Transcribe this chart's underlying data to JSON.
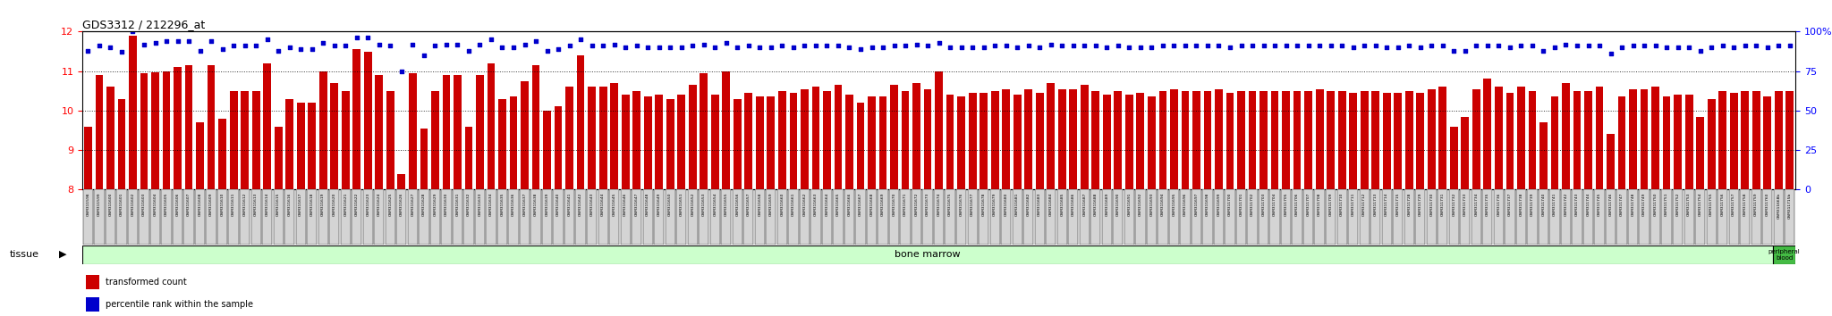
{
  "title": "GDS3312 / 212296_at",
  "left_ylim": [
    8,
    12
  ],
  "right_ylim": [
    0,
    100
  ],
  "left_yticks": [
    8,
    9,
    10,
    11,
    12
  ],
  "right_yticks": [
    0,
    25,
    50,
    75,
    100
  ],
  "bar_color": "#cc0000",
  "dot_color": "#0000cc",
  "bg_color": "#ffffff",
  "tissue_label_bone": "bone marrow",
  "tissue_label_blood": "peripheral\nblood",
  "tissue_label_left": "tissue",
  "sample_labels": [
    "GSM311598",
    "GSM311599",
    "GSM311600",
    "GSM311601",
    "GSM311602",
    "GSM311603",
    "GSM311604",
    "GSM311605",
    "GSM311606",
    "GSM311607",
    "GSM311608",
    "GSM311609",
    "GSM311610",
    "GSM311611",
    "GSM311612",
    "GSM311613",
    "GSM311614",
    "GSM311615",
    "GSM311616",
    "GSM311617",
    "GSM311618",
    "GSM311619",
    "GSM311620",
    "GSM311621",
    "GSM311622",
    "GSM311623",
    "GSM311624",
    "GSM311625",
    "GSM311626",
    "GSM311627",
    "GSM311628",
    "GSM311629",
    "GSM311630",
    "GSM311631",
    "GSM311632",
    "GSM311633",
    "GSM311634",
    "GSM311635",
    "GSM311636",
    "GSM311637",
    "GSM311638",
    "GSM311639",
    "GSM311640",
    "GSM311641",
    "GSM311642",
    "GSM311643",
    "GSM311644",
    "GSM311645",
    "GSM311646",
    "GSM311647",
    "GSM311648",
    "GSM311649",
    "GSM311650",
    "GSM311651",
    "GSM311652",
    "GSM311653",
    "GSM311654",
    "GSM311655",
    "GSM311656",
    "GSM311657",
    "GSM311658",
    "GSM311659",
    "GSM311660",
    "GSM311661",
    "GSM311662",
    "GSM311663",
    "GSM311664",
    "GSM311665",
    "GSM311666",
    "GSM311667",
    "GSM311668",
    "GSM311669",
    "GSM311670",
    "GSM311671",
    "GSM311672",
    "GSM311673",
    "GSM311674",
    "GSM311675",
    "GSM311676",
    "GSM311677",
    "GSM311678",
    "GSM311679",
    "GSM311680",
    "GSM311681",
    "GSM311682",
    "GSM311683",
    "GSM311684",
    "GSM311685",
    "GSM311686",
    "GSM311687",
    "GSM311688",
    "GSM311689",
    "GSM311690",
    "GSM311691",
    "GSM311692",
    "GSM311693",
    "GSM311694",
    "GSM311695",
    "GSM311696",
    "GSM311697",
    "GSM311698",
    "GSM311699",
    "GSM311700",
    "GSM311701",
    "GSM311702",
    "GSM311703",
    "GSM311704",
    "GSM311705",
    "GSM311706",
    "GSM311707",
    "GSM311708",
    "GSM311709",
    "GSM311710",
    "GSM311711",
    "GSM311712",
    "GSM311713",
    "GSM311714",
    "GSM311715",
    "GSM311728",
    "GSM311729",
    "GSM311730",
    "GSM311731",
    "GSM311732",
    "GSM311733",
    "GSM311734",
    "GSM311735",
    "GSM311736",
    "GSM311737",
    "GSM311738",
    "GSM311739",
    "GSM311740",
    "GSM311741",
    "GSM311742",
    "GSM311743",
    "GSM311744",
    "GSM311745",
    "GSM311746",
    "GSM311747",
    "GSM311748",
    "GSM311749",
    "GSM311750",
    "GSM311751",
    "GSM311752",
    "GSM311753",
    "GSM311754",
    "GSM311755",
    "GSM311756",
    "GSM311757",
    "GSM311758",
    "GSM311759",
    "GSM311760",
    "GSM311668b",
    "GSM311715b"
  ],
  "bar_values": [
    9.6,
    10.9,
    10.6,
    10.3,
    11.9,
    10.95,
    10.98,
    11.0,
    11.1,
    11.15,
    9.7,
    11.15,
    9.8,
    10.5,
    10.5,
    10.5,
    11.2,
    9.6,
    10.3,
    10.2,
    10.2,
    11.0,
    10.7,
    10.5,
    11.55,
    11.5,
    10.9,
    10.5,
    8.4,
    10.95,
    9.55,
    10.5,
    10.9,
    10.9,
    9.6,
    10.9,
    11.2,
    10.3,
    10.35,
    10.75,
    11.15,
    10.0,
    10.1,
    10.6,
    11.4,
    10.6,
    10.6,
    10.7,
    10.4,
    10.5,
    10.35,
    10.4,
    10.3,
    10.4,
    10.65,
    10.95,
    10.4,
    11.0,
    10.3,
    10.45,
    10.35,
    10.35,
    10.5,
    10.45,
    10.55,
    10.6,
    10.5,
    10.65,
    10.4,
    10.2,
    10.35,
    10.35,
    10.65,
    10.5,
    10.7,
    10.55,
    11.0,
    10.4,
    10.35,
    10.45,
    10.45,
    10.5,
    10.55,
    10.4,
    10.55,
    10.45,
    10.7,
    10.55,
    10.55,
    10.65,
    10.5,
    10.4,
    10.5,
    10.4,
    10.45,
    10.35,
    10.5,
    10.55,
    10.5,
    10.5,
    10.5,
    10.55,
    10.45,
    10.5,
    10.5,
    10.5,
    10.5,
    10.5,
    10.5,
    10.5,
    10.55,
    10.5,
    10.5,
    10.45,
    10.5,
    10.5,
    10.45,
    10.45,
    10.5,
    10.45,
    10.55,
    10.6,
    9.6,
    9.85,
    10.55,
    10.8,
    10.6,
    10.45,
    10.6,
    10.5,
    9.7,
    10.35,
    10.7,
    10.5,
    10.5,
    10.6,
    9.4,
    10.35,
    10.55,
    10.55,
    10.6,
    10.35,
    10.4,
    10.4,
    9.85,
    10.3,
    10.5,
    10.45,
    10.5,
    10.5,
    10.35,
    10.5,
    10.5
  ],
  "dot_values": [
    88,
    91,
    90,
    87,
    100,
    92,
    93,
    94,
    94,
    94,
    88,
    94,
    89,
    91,
    91,
    91,
    95,
    88,
    90,
    89,
    89,
    93,
    91,
    91,
    96,
    96,
    92,
    91,
    75,
    92,
    85,
    91,
    92,
    92,
    88,
    92,
    95,
    90,
    90,
    92,
    94,
    88,
    89,
    91,
    95,
    91,
    91,
    92,
    90,
    91,
    90,
    90,
    90,
    90,
    91,
    92,
    90,
    93,
    90,
    91,
    90,
    90,
    91,
    90,
    91,
    91,
    91,
    91,
    90,
    89,
    90,
    90,
    91,
    91,
    92,
    91,
    93,
    90,
    90,
    90,
    90,
    91,
    91,
    90,
    91,
    90,
    92,
    91,
    91,
    91,
    91,
    90,
    91,
    90,
    90,
    90,
    91,
    91,
    91,
    91,
    91,
    91,
    90,
    91,
    91,
    91,
    91,
    91,
    91,
    91,
    91,
    91,
    91,
    90,
    91,
    91,
    90,
    90,
    91,
    90,
    91,
    91,
    88,
    88,
    91,
    91,
    91,
    90,
    91,
    91,
    88,
    90,
    92,
    91,
    91,
    91,
    86,
    90,
    91,
    91,
    91,
    90,
    90,
    90,
    88,
    90,
    91,
    90,
    91,
    91,
    90,
    91,
    91
  ],
  "n_bone_marrow": 151,
  "n_total": 153,
  "legend_bar": "transformed count",
  "legend_dot": "percentile rank within the sample"
}
